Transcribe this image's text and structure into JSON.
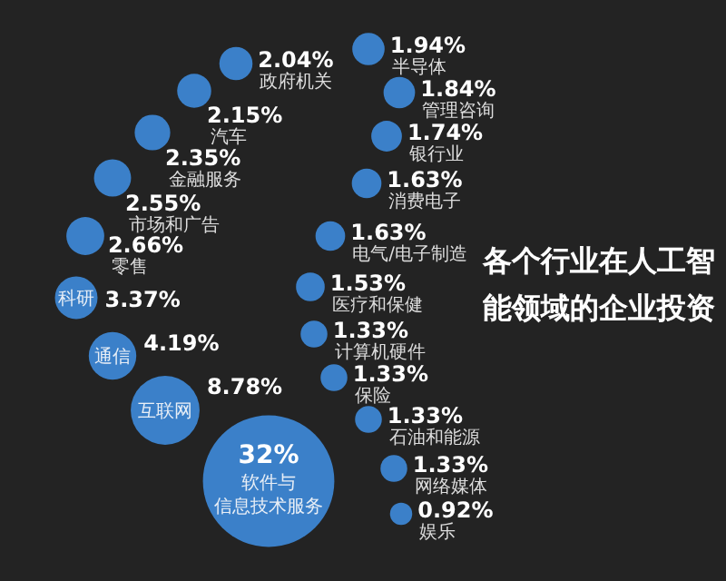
{
  "chart_data": {
    "type": "other",
    "title": "各个行业在人工智能领域的企业投资",
    "color": "#3b80c9",
    "categories": [
      "软件与信息技术服务",
      "互联网",
      "通信",
      "科研",
      "零售",
      "市场和广告",
      "金融服务",
      "汽车",
      "政府机关",
      "半导体",
      "管理咨询",
      "银行业",
      "消费电子",
      "电气/电子制造",
      "医疗和保健",
      "计算机硬件",
      "保险",
      "石油和能源",
      "网络媒体",
      "娱乐"
    ],
    "values": [
      32,
      8.78,
      4.19,
      3.37,
      2.66,
      2.55,
      2.35,
      2.15,
      2.04,
      1.94,
      1.84,
      1.74,
      1.63,
      1.63,
      1.53,
      1.33,
      1.33,
      1.33,
      1.33,
      0.92
    ],
    "value_labels": [
      "32%",
      "8.78%",
      "4.19%",
      "3.37%",
      "2.66%",
      "2.55%",
      "2.35%",
      "2.15%",
      "2.04%",
      "1.94%",
      "1.84%",
      "1.74%",
      "1.63%",
      "1.63%",
      "1.53%",
      "1.33%",
      "1.33%",
      "1.33%",
      "1.33%",
      "0.92%"
    ]
  }
}
